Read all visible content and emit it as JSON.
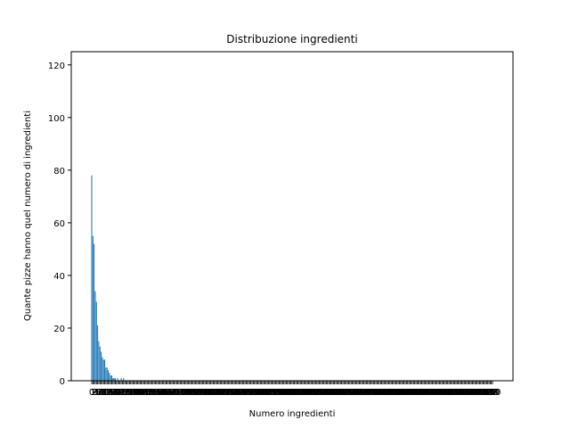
{
  "chart_data": {
    "type": "bar",
    "title": "Distribuzione ingredienti",
    "xlabel": "Numero ingredienti",
    "ylabel": "Quante pizze hanno quel numero di ingredienti",
    "ylim": [
      0,
      125
    ],
    "yticks": [
      0,
      20,
      40,
      60,
      80,
      100,
      120
    ],
    "grid": false,
    "bar_color": "#1f77b4",
    "x_tick_labels_note": "dense overlapping integer tick labels (illegible)",
    "x": [
      0,
      1,
      2,
      3,
      4,
      5,
      6,
      7,
      8,
      9,
      10,
      11,
      12,
      13,
      14,
      15,
      16,
      17,
      18,
      19,
      20,
      22,
      25,
      27
    ],
    "values": [
      78,
      55,
      52,
      34,
      30,
      21,
      15,
      13,
      11,
      9,
      8,
      8,
      5,
      5,
      4,
      3,
      2,
      2,
      1,
      1,
      1,
      1,
      1,
      1
    ],
    "x_max": 340
  }
}
